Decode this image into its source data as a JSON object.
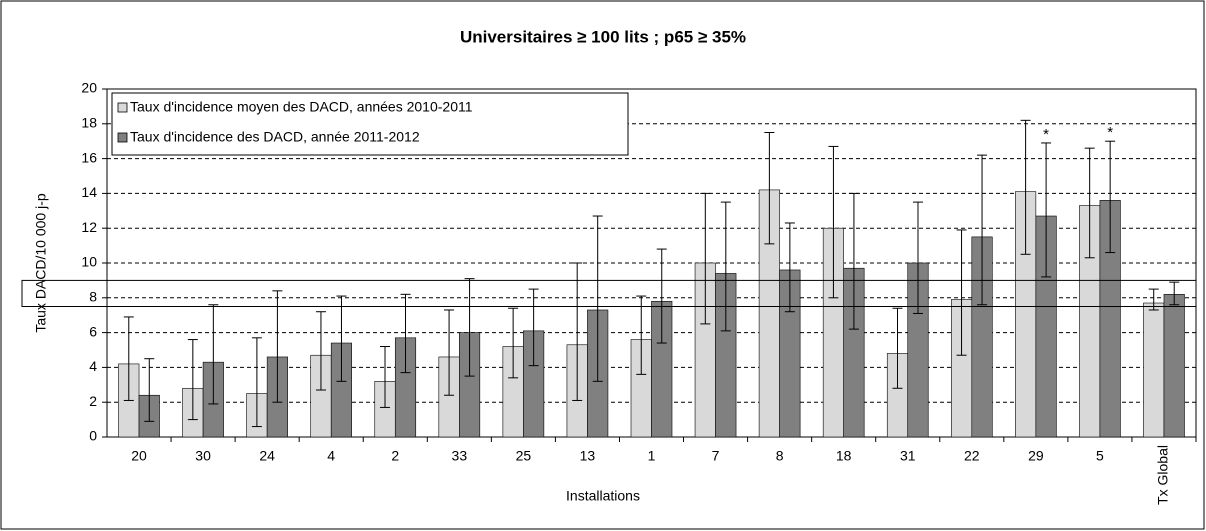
{
  "chart_data": {
    "type": "bar",
    "title": "Universitaires ≥ 100 lits ; p65 ≥ 35%",
    "x_label": "Installations",
    "y_label": "Taux DACD/10 000 j-p",
    "categories": [
      "20",
      "30",
      "24",
      "4",
      "2",
      "33",
      "25",
      "13",
      "1",
      "7",
      "8",
      "18",
      "31",
      "22",
      "29",
      "5",
      "Tx Global"
    ],
    "series": [
      {
        "name": "Taux d'incidence moyen des DACD, années 2010-2011",
        "color": "#d9d9d9",
        "values": [
          4.2,
          2.8,
          2.5,
          4.7,
          3.2,
          4.6,
          5.2,
          5.3,
          5.6,
          10.0,
          14.2,
          12.0,
          4.8,
          7.9,
          14.1,
          13.3,
          7.7
        ],
        "ci_low": [
          2.1,
          1.0,
          0.6,
          2.7,
          1.7,
          2.4,
          3.4,
          2.1,
          3.6,
          6.5,
          11.1,
          8.0,
          2.8,
          4.7,
          10.5,
          10.3,
          7.3
        ],
        "ci_high": [
          6.9,
          5.6,
          5.7,
          7.2,
          5.2,
          7.3,
          7.4,
          10.0,
          8.1,
          14.0,
          17.5,
          16.7,
          7.4,
          11.9,
          18.2,
          16.6,
          8.5
        ]
      },
      {
        "name": "Taux d'incidence des DACD, année 2011-2012",
        "color": "#808080",
        "values": [
          2.4,
          4.3,
          4.6,
          5.4,
          5.7,
          6.0,
          6.1,
          7.3,
          7.8,
          9.4,
          9.6,
          9.7,
          10.0,
          11.5,
          12.7,
          13.6,
          8.2
        ],
        "ci_low": [
          0.9,
          1.9,
          2.0,
          3.2,
          3.7,
          3.5,
          4.1,
          3.2,
          5.4,
          6.1,
          7.2,
          6.2,
          7.1,
          7.6,
          9.2,
          10.6,
          7.6
        ],
        "ci_high": [
          4.5,
          7.6,
          8.4,
          8.1,
          8.2,
          9.1,
          8.5,
          12.7,
          10.8,
          13.5,
          12.3,
          14.0,
          13.5,
          16.2,
          16.9,
          17.0,
          8.9
        ]
      }
    ],
    "annotations": [
      {
        "text": "*",
        "category": "29",
        "series": 1
      },
      {
        "text": "*",
        "category": "5",
        "series": 1
      }
    ],
    "reference_band": [
      7.5,
      9.0
    ],
    "ylim": [
      0,
      20
    ],
    "yticks": [
      0,
      2,
      4,
      6,
      8,
      10,
      12,
      14,
      16,
      18,
      20
    ],
    "grid": true,
    "legend": "upper left"
  }
}
